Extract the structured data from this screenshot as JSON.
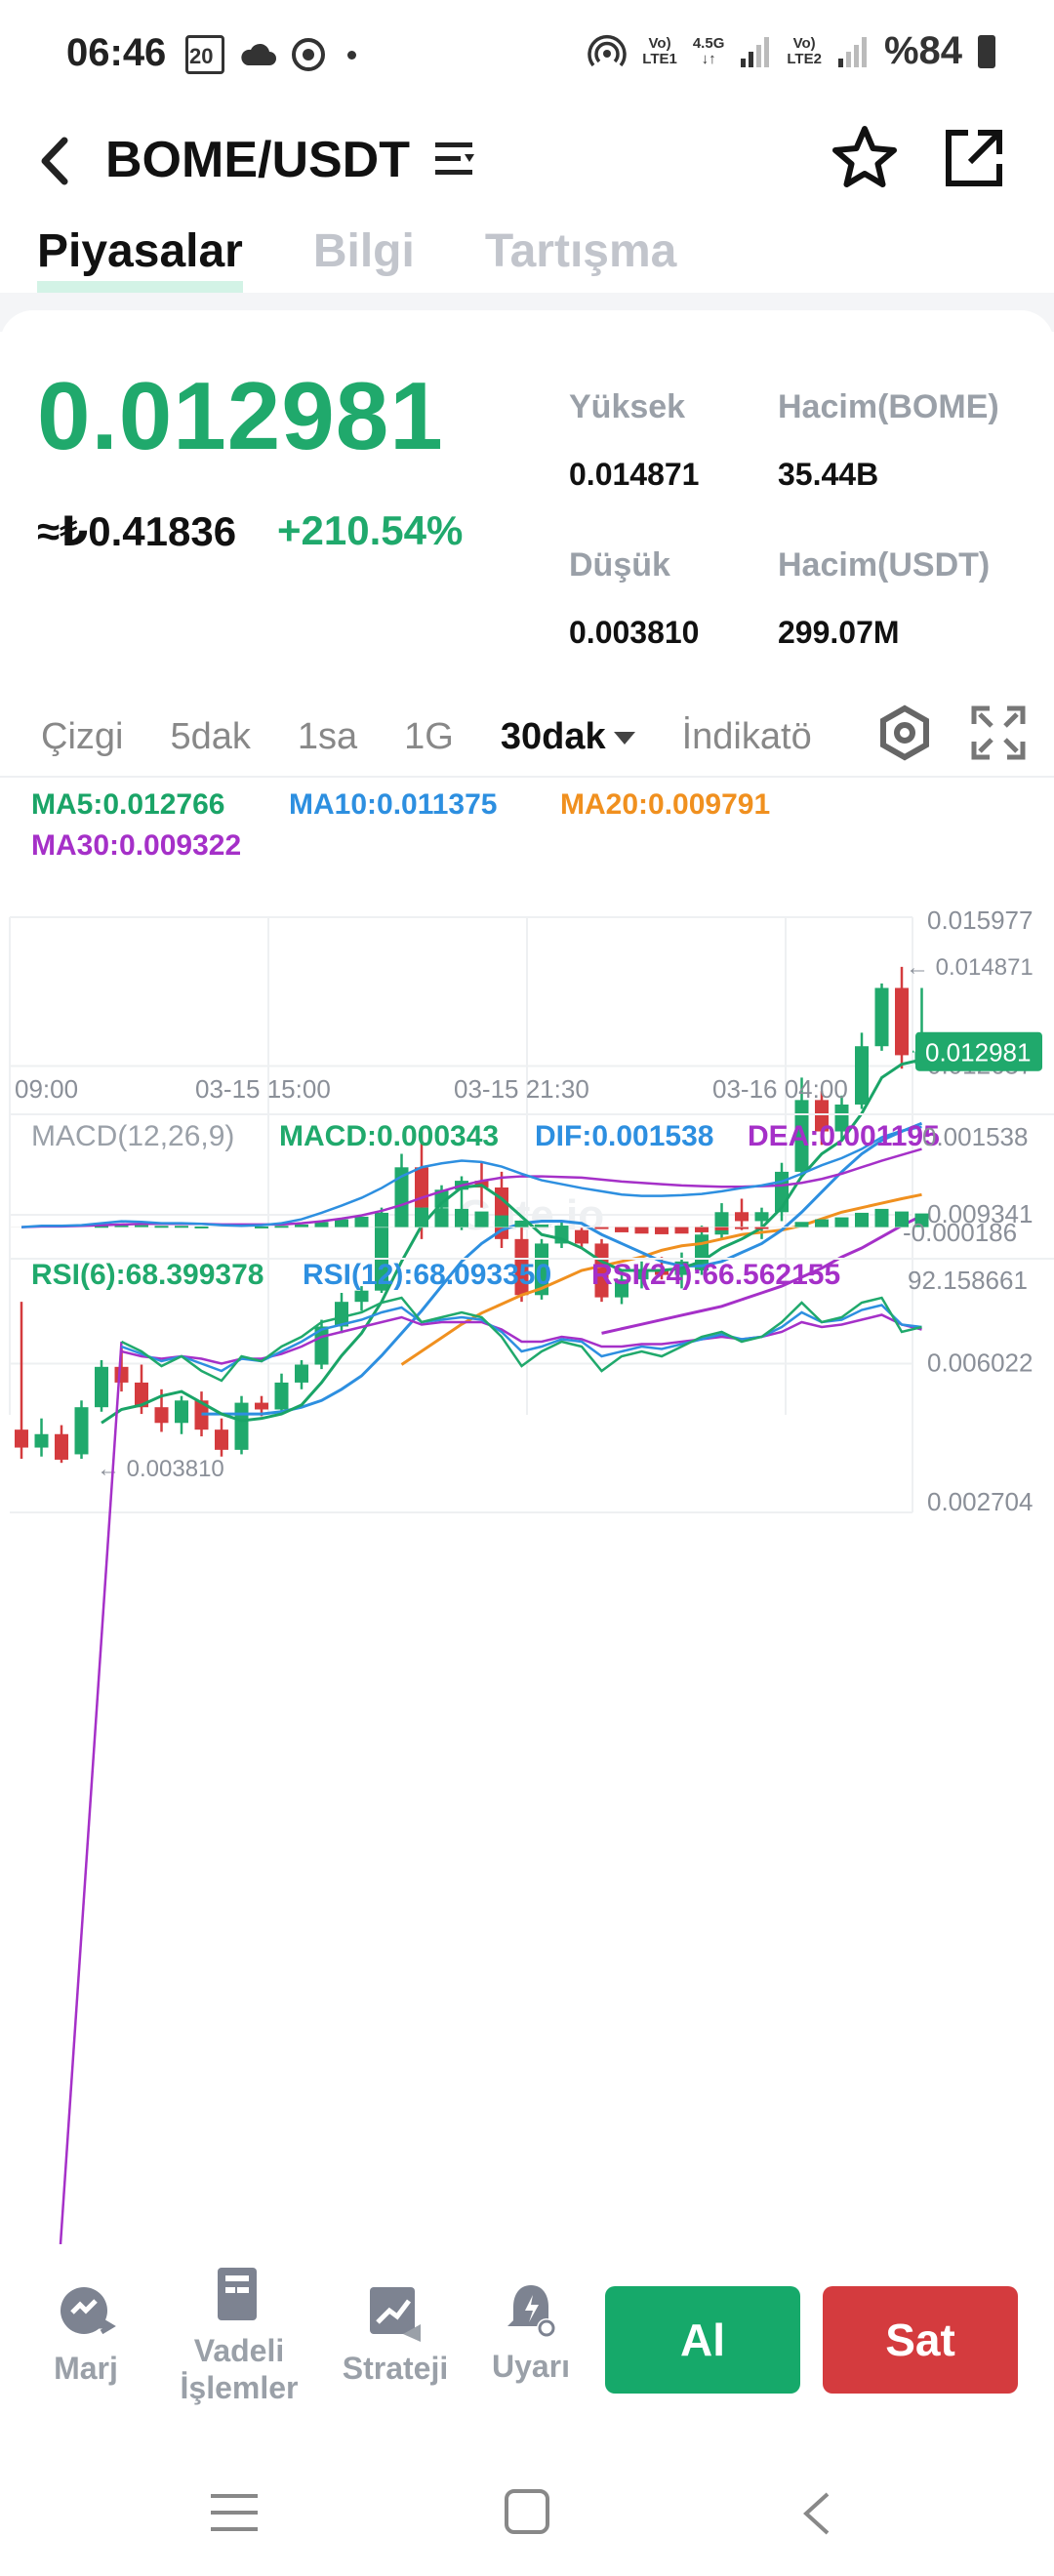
{
  "status_bar": {
    "time": "06:46",
    "notif_badge": "20",
    "net1_top": "Vo)",
    "net1_bottom": "LTE1",
    "net_speed_top": "4.5G",
    "net2_top": "Vo)",
    "net2_bottom": "LTE2",
    "battery": "%84"
  },
  "header": {
    "pair": "BOME/USDT"
  },
  "tabs": [
    "Piyasalar",
    "Bilgi",
    "Tartışma"
  ],
  "ticker": {
    "last_price": "0.012981",
    "try_price": "≈₺0.41836",
    "change": "+210.54%",
    "high_label": "Yüksek",
    "high_value": "0.014871",
    "low_label": "Düşük",
    "low_value": "0.003810",
    "vol_base_label": "Hacim(BOME)",
    "vol_base_value": "35.44B",
    "vol_quote_label": "Hacim(USDT)",
    "vol_quote_value": "299.07M"
  },
  "timeframes": [
    "Çizgi",
    "5dak",
    "1sa",
    "1G",
    "30dak",
    "İndikatö"
  ],
  "ma": {
    "ma5": "MA5:0.012766",
    "ma10": "MA10:0.011375",
    "ma20": "MA20:0.009791",
    "ma30": "MA30:0.009322"
  },
  "colors": {
    "up": "#20a96c",
    "down": "#d43b3e",
    "ma5": "#1aa467",
    "ma10": "#2d8fe0",
    "ma20": "#f0901f",
    "ma30": "#a530c8",
    "dif": "#2d8fe0",
    "dea": "#a530c8"
  },
  "chart_data": {
    "type": "candlestick",
    "title": "BOME/USDT 30dak",
    "y_ticks": [
      "0.015977",
      "0.012657",
      "0.009341",
      "0.006022",
      "0.002704"
    ],
    "ylim": [
      0.002704,
      0.015977
    ],
    "x_ticks": [
      "09:00",
      "03-15 15:00",
      "03-15 21:30",
      "03-16 04:00"
    ],
    "price_tag": "0.012981",
    "high_marker": "← 0.014871",
    "low_marker": "← 0.003810",
    "watermark": "Gate.io",
    "candles": [
      {
        "o": 0.00455,
        "h": 0.0074,
        "l": 0.0039,
        "c": 0.00415
      },
      {
        "o": 0.00415,
        "h": 0.0048,
        "l": 0.00395,
        "c": 0.00445
      },
      {
        "o": 0.00445,
        "h": 0.00465,
        "l": 0.00381,
        "c": 0.00388
      },
      {
        "o": 0.004,
        "h": 0.0052,
        "l": 0.0039,
        "c": 0.00505
      },
      {
        "o": 0.00505,
        "h": 0.0061,
        "l": 0.00495,
        "c": 0.00595
      },
      {
        "o": 0.00595,
        "h": 0.0064,
        "l": 0.0054,
        "c": 0.0056
      },
      {
        "o": 0.0056,
        "h": 0.006,
        "l": 0.0049,
        "c": 0.00505
      },
      {
        "o": 0.00505,
        "h": 0.00545,
        "l": 0.0045,
        "c": 0.0047
      },
      {
        "o": 0.0047,
        "h": 0.0053,
        "l": 0.00445,
        "c": 0.0052
      },
      {
        "o": 0.0052,
        "h": 0.0054,
        "l": 0.0044,
        "c": 0.00455
      },
      {
        "o": 0.00455,
        "h": 0.0048,
        "l": 0.00395,
        "c": 0.0041
      },
      {
        "o": 0.0041,
        "h": 0.0053,
        "l": 0.004,
        "c": 0.00515
      },
      {
        "o": 0.00515,
        "h": 0.0053,
        "l": 0.00485,
        "c": 0.005
      },
      {
        "o": 0.005,
        "h": 0.0058,
        "l": 0.00495,
        "c": 0.0056
      },
      {
        "o": 0.0056,
        "h": 0.0061,
        "l": 0.00545,
        "c": 0.006
      },
      {
        "o": 0.006,
        "h": 0.007,
        "l": 0.0059,
        "c": 0.00685
      },
      {
        "o": 0.00685,
        "h": 0.0076,
        "l": 0.0067,
        "c": 0.0074
      },
      {
        "o": 0.0074,
        "h": 0.00775,
        "l": 0.0072,
        "c": 0.00765
      },
      {
        "o": 0.00765,
        "h": 0.0095,
        "l": 0.0076,
        "c": 0.0093
      },
      {
        "o": 0.0093,
        "h": 0.0107,
        "l": 0.0092,
        "c": 0.0104
      },
      {
        "o": 0.0104,
        "h": 0.0112,
        "l": 0.0088,
        "c": 0.0095
      },
      {
        "o": 0.0095,
        "h": 0.01,
        "l": 0.0093,
        "c": 0.0099
      },
      {
        "o": 0.0099,
        "h": 0.0102,
        "l": 0.009,
        "c": 0.0101
      },
      {
        "o": 0.0101,
        "h": 0.0105,
        "l": 0.0095,
        "c": 0.00995
      },
      {
        "o": 0.00995,
        "h": 0.0103,
        "l": 0.0086,
        "c": 0.0088
      },
      {
        "o": 0.0088,
        "h": 0.0092,
        "l": 0.0074,
        "c": 0.00755
      },
      {
        "o": 0.00755,
        "h": 0.0088,
        "l": 0.00745,
        "c": 0.0087
      },
      {
        "o": 0.0087,
        "h": 0.0092,
        "l": 0.0086,
        "c": 0.0091
      },
      {
        "o": 0.009,
        "h": 0.00905,
        "l": 0.0086,
        "c": 0.0087
      },
      {
        "o": 0.0087,
        "h": 0.0088,
        "l": 0.0074,
        "c": 0.0075
      },
      {
        "o": 0.0075,
        "h": 0.0081,
        "l": 0.00735,
        "c": 0.0079
      },
      {
        "o": 0.0079,
        "h": 0.0083,
        "l": 0.0077,
        "c": 0.0081
      },
      {
        "o": 0.0081,
        "h": 0.0084,
        "l": 0.0079,
        "c": 0.008
      },
      {
        "o": 0.008,
        "h": 0.0085,
        "l": 0.0077,
        "c": 0.0083
      },
      {
        "o": 0.0081,
        "h": 0.0091,
        "l": 0.008,
        "c": 0.0089
      },
      {
        "o": 0.0089,
        "h": 0.0096,
        "l": 0.0088,
        "c": 0.0094
      },
      {
        "o": 0.0094,
        "h": 0.0097,
        "l": 0.009,
        "c": 0.0092
      },
      {
        "o": 0.0092,
        "h": 0.0095,
        "l": 0.0088,
        "c": 0.0094
      },
      {
        "o": 0.0094,
        "h": 0.0105,
        "l": 0.0092,
        "c": 0.0103
      },
      {
        "o": 0.0103,
        "h": 0.0124,
        "l": 0.0102,
        "c": 0.0119
      },
      {
        "o": 0.0119,
        "h": 0.0121,
        "l": 0.0109,
        "c": 0.0112
      },
      {
        "o": 0.0112,
        "h": 0.012,
        "l": 0.011,
        "c": 0.0118
      },
      {
        "o": 0.0118,
        "h": 0.0134,
        "l": 0.0117,
        "c": 0.0131
      },
      {
        "o": 0.0131,
        "h": 0.0145,
        "l": 0.013,
        "c": 0.0144
      },
      {
        "o": 0.0144,
        "h": 0.01487,
        "l": 0.0126,
        "c": 0.0129
      },
      {
        "o": 0.0127,
        "h": 0.0144,
        "l": 0.0126,
        "c": 0.01298
      }
    ],
    "ma5_values": [
      null,
      null,
      null,
      null,
      0.0047,
      0.005,
      0.0051,
      0.0053,
      0.0054,
      0.00515,
      0.0049,
      0.00475,
      0.0048,
      0.0049,
      0.0051,
      0.0056,
      0.0062,
      0.0067,
      0.0074,
      0.0083,
      0.0091,
      0.0096,
      0.00995,
      0.01,
      0.0097,
      0.0093,
      0.0089,
      0.0088,
      0.0086,
      0.0083,
      0.0081,
      0.0081,
      0.0081,
      0.00815,
      0.0083,
      0.0086,
      0.0088,
      0.00905,
      0.0095,
      0.0102,
      0.0107,
      0.011,
      0.0116,
      0.0124,
      0.0127,
      0.0128
    ],
    "ma10_values": [
      null,
      null,
      null,
      null,
      null,
      null,
      null,
      null,
      null,
      0.0049,
      0.0049,
      0.0049,
      0.0049,
      0.00495,
      0.00505,
      0.0052,
      0.00545,
      0.00575,
      0.0062,
      0.0067,
      0.0072,
      0.00775,
      0.0083,
      0.0087,
      0.009,
      0.00915,
      0.0092,
      0.0092,
      0.00915,
      0.0089,
      0.0087,
      0.0085,
      0.0083,
      0.0082,
      0.0082,
      0.0083,
      0.0085,
      0.0087,
      0.009,
      0.0094,
      0.00985,
      0.0103,
      0.0107,
      0.011,
      0.0112,
      0.01138
    ],
    "ma20_values": [
      null,
      null,
      null,
      null,
      null,
      null,
      null,
      null,
      null,
      null,
      null,
      null,
      null,
      null,
      null,
      null,
      null,
      null,
      null,
      0.006,
      0.0063,
      0.0066,
      0.0069,
      0.00715,
      0.00735,
      0.00755,
      0.0077,
      0.0079,
      0.0081,
      0.0082,
      0.0083,
      0.0084,
      0.00855,
      0.00865,
      0.0087,
      0.0088,
      0.0089,
      0.00895,
      0.009,
      0.0091,
      0.00925,
      0.0094,
      0.0095,
      0.0096,
      0.0097,
      0.00979
    ],
    "ma30_values": [
      null,
      null,
      null,
      null,
      null,
      null,
      null,
      null,
      null,
      null,
      null,
      null,
      null,
      null,
      null,
      null,
      null,
      null,
      null,
      null,
      null,
      null,
      null,
      null,
      null,
      null,
      null,
      null,
      null,
      0.0067,
      0.0068,
      0.0069,
      0.007,
      0.0071,
      0.0072,
      0.0073,
      0.00745,
      0.0076,
      0.00775,
      0.00795,
      0.00815,
      0.0084,
      0.0086,
      0.00885,
      0.0091,
      0.00932
    ],
    "macd": {
      "label": "MACD(12,26,9)",
      "macd": "MACD:0.000343",
      "dif": "DIF:0.001538",
      "dea": "DEA:0.001195",
      "y_ticks": [
        "0.001538",
        "-0.000186"
      ],
      "ylim": [
        -0.000186,
        0.001538
      ],
      "hist": [
        0,
        0,
        0,
        0,
        2e-05,
        4e-05,
        3e-05,
        2e-05,
        2e-05,
        1e-05,
        0,
        0,
        1e-05,
        2e-05,
        4e-05,
        8e-05,
        0.00012,
        0.00016,
        0.00022,
        0.00028,
        0.0003,
        0.00029,
        0.00028,
        0.00024,
        0.00018,
        0.0001,
        4e-05,
        1e-05,
        0.0,
        -3e-05,
        -8e-05,
        -0.0001,
        -0.00011,
        -0.0001,
        -8e-05,
        -5e-05,
        -3e-05,
        -2e-05,
        0.0,
        8e-05,
        0.00012,
        0.00015,
        0.00022,
        0.00028,
        0.00024,
        0.00021
      ],
      "dif_values": [
        0.0,
        2e-05,
        2e-05,
        3e-05,
        6e-05,
        9e-05,
        8e-05,
        6e-05,
        6e-05,
        5e-05,
        3e-05,
        2e-05,
        3e-05,
        6e-05,
        0.00012,
        0.00022,
        0.00033,
        0.00045,
        0.0006,
        0.00078,
        0.00092,
        0.00098,
        0.00102,
        0.001,
        0.00093,
        0.00082,
        0.00072,
        0.00066,
        0.0006,
        0.00055,
        0.0005,
        0.00048,
        0.00048,
        0.00049,
        0.00051,
        0.00055,
        0.0006,
        0.00064,
        0.0007,
        0.00082,
        0.00095,
        0.00106,
        0.0012,
        0.00138,
        0.00148,
        0.00154
      ],
      "dea_values": [
        0.0,
        1e-05,
        1e-05,
        2e-05,
        3e-05,
        4e-05,
        5e-05,
        5e-05,
        5e-05,
        5e-05,
        4e-05,
        4e-05,
        4e-05,
        4e-05,
        6e-05,
        9e-05,
        0.00013,
        0.00018,
        0.00025,
        0.00034,
        0.00045,
        0.00055,
        0.00064,
        0.00071,
        0.00076,
        0.00078,
        0.00078,
        0.00077,
        0.00076,
        0.00073,
        0.0007,
        0.00068,
        0.00066,
        0.00064,
        0.00063,
        0.00062,
        0.00062,
        0.00063,
        0.00064,
        0.00068,
        0.00074,
        0.00082,
        0.00092,
        0.00102,
        0.00111,
        0.0012
      ]
    },
    "rsi": {
      "rsi6": "RSI(6):68.399378",
      "rsi12": "RSI(12):68.093350",
      "rsi24": "RSI(24):66.562155",
      "y_top": "92.158661",
      "rsi6_values": [
        null,
        null,
        null,
        null,
        null,
        62,
        58,
        52,
        56,
        50,
        46,
        56,
        54,
        60,
        64,
        70,
        72,
        74,
        78,
        80,
        70,
        72,
        74,
        72,
        64,
        52,
        58,
        62,
        60,
        50,
        56,
        58,
        56,
        60,
        64,
        66,
        62,
        64,
        70,
        78,
        70,
        72,
        78,
        80,
        66,
        68
      ],
      "rsi12_values": [
        null,
        null,
        null,
        null,
        null,
        60,
        57,
        54,
        56,
        53,
        50,
        55,
        54,
        58,
        62,
        67,
        69,
        71,
        74,
        76,
        70,
        71,
        72,
        71,
        66,
        58,
        60,
        63,
        62,
        56,
        58,
        60,
        59,
        61,
        63,
        65,
        63,
        64,
        68,
        74,
        70,
        71,
        75,
        77,
        69,
        68
      ],
      "rsi24_values": [
        null,
        null,
        null,
        null,
        null,
        58,
        56,
        55,
        56,
        55,
        53,
        55,
        55,
        57,
        60,
        64,
        66,
        68,
        70,
        72,
        69,
        70,
        70,
        70,
        67,
        62,
        62,
        64,
        63,
        60,
        60,
        61,
        61,
        62,
        63,
        64,
        63,
        64,
        66,
        70,
        68,
        69,
        71,
        73,
        69,
        67
      ]
    }
  },
  "nav": {
    "margin": "Marj",
    "futures": "Vadeli",
    "futures2": "İşlemler",
    "strategy": "Strateji",
    "alerts": "Uyarı",
    "buy": "Al",
    "sell": "Sat"
  }
}
